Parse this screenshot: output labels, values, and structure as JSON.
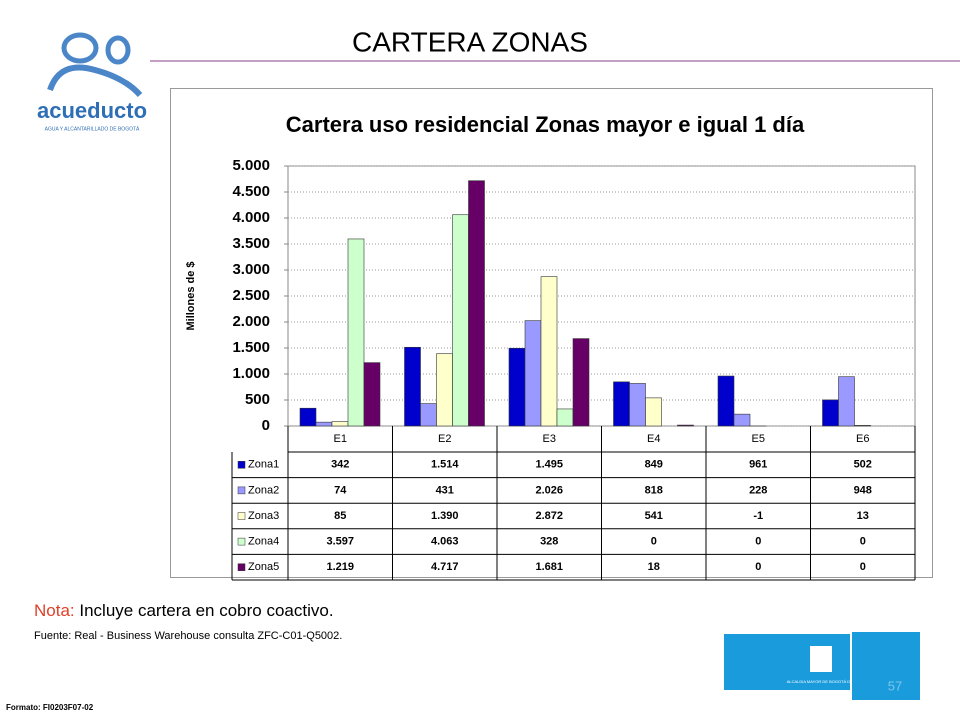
{
  "slide": {
    "title": "CARTERA ZONAS",
    "logo_name": "acueducto",
    "logo_tagline": "AGUA Y ALCANTARILLADO DE BOGOTÁ",
    "note_label": "Nota:",
    "note_text": "Incluye cartera en cobro coactivo.",
    "source": "Fuente: Real - Business Warehouse  consulta ZFC-C01-Q5002.",
    "format": "Formato: FI0203F07-02",
    "page_number": "57",
    "city_logo": "ALCALDIA MAYOR DE BOGOTÁ D.C."
  },
  "chart_data": {
    "type": "bar",
    "title": "Cartera uso residencial Zonas mayor e igual 1 día",
    "y_label": "Millones de $",
    "categories": [
      "E1",
      "E2",
      "E3",
      "E4",
      "E5",
      "E6"
    ],
    "series": [
      {
        "name": "Zona1",
        "color": "#0000cc",
        "values": [
          342,
          1514,
          1495,
          849,
          961,
          502
        ],
        "value_labels": [
          "342",
          "1.514",
          "1.495",
          "849",
          "961",
          "502"
        ]
      },
      {
        "name": "Zona2",
        "color": "#9999ff",
        "values": [
          74,
          431,
          2026,
          818,
          228,
          948
        ],
        "value_labels": [
          "74",
          "431",
          "2.026",
          "818",
          "228",
          "948"
        ]
      },
      {
        "name": "Zona3",
        "color": "#ffffcc",
        "values": [
          85,
          1390,
          2872,
          541,
          -1,
          13
        ],
        "value_labels": [
          "85",
          "1.390",
          "2.872",
          "541",
          "-1",
          "13"
        ]
      },
      {
        "name": "Zona4",
        "color": "#ccffcc",
        "values": [
          3597,
          4063,
          328,
          0,
          0,
          0
        ],
        "value_labels": [
          "3.597",
          "4.063",
          "328",
          "0",
          "0",
          "0"
        ]
      },
      {
        "name": "Zona5",
        "color": "#660066",
        "values": [
          1219,
          4717,
          1681,
          18,
          0,
          0
        ],
        "value_labels": [
          "1.219",
          "4.717",
          "1.681",
          "18",
          "0",
          "0"
        ]
      }
    ],
    "ylim": [
      0,
      5000
    ],
    "yticks": [
      0,
      500,
      {
        "value": 1000,
        "label": "1.000"
      },
      {
        "value": 1500,
        "label": "1.500"
      },
      {
        "value": 2000,
        "label": "2.000"
      },
      {
        "value": 2500,
        "label": "2.500"
      },
      {
        "value": 3000,
        "label": "3.000"
      },
      {
        "value": 3500,
        "label": "3.500"
      },
      {
        "value": 4000,
        "label": "4.000"
      },
      {
        "value": 4500,
        "label": "4.500"
      },
      {
        "value": 5000,
        "label": "5.000"
      }
    ],
    "grid": true
  }
}
